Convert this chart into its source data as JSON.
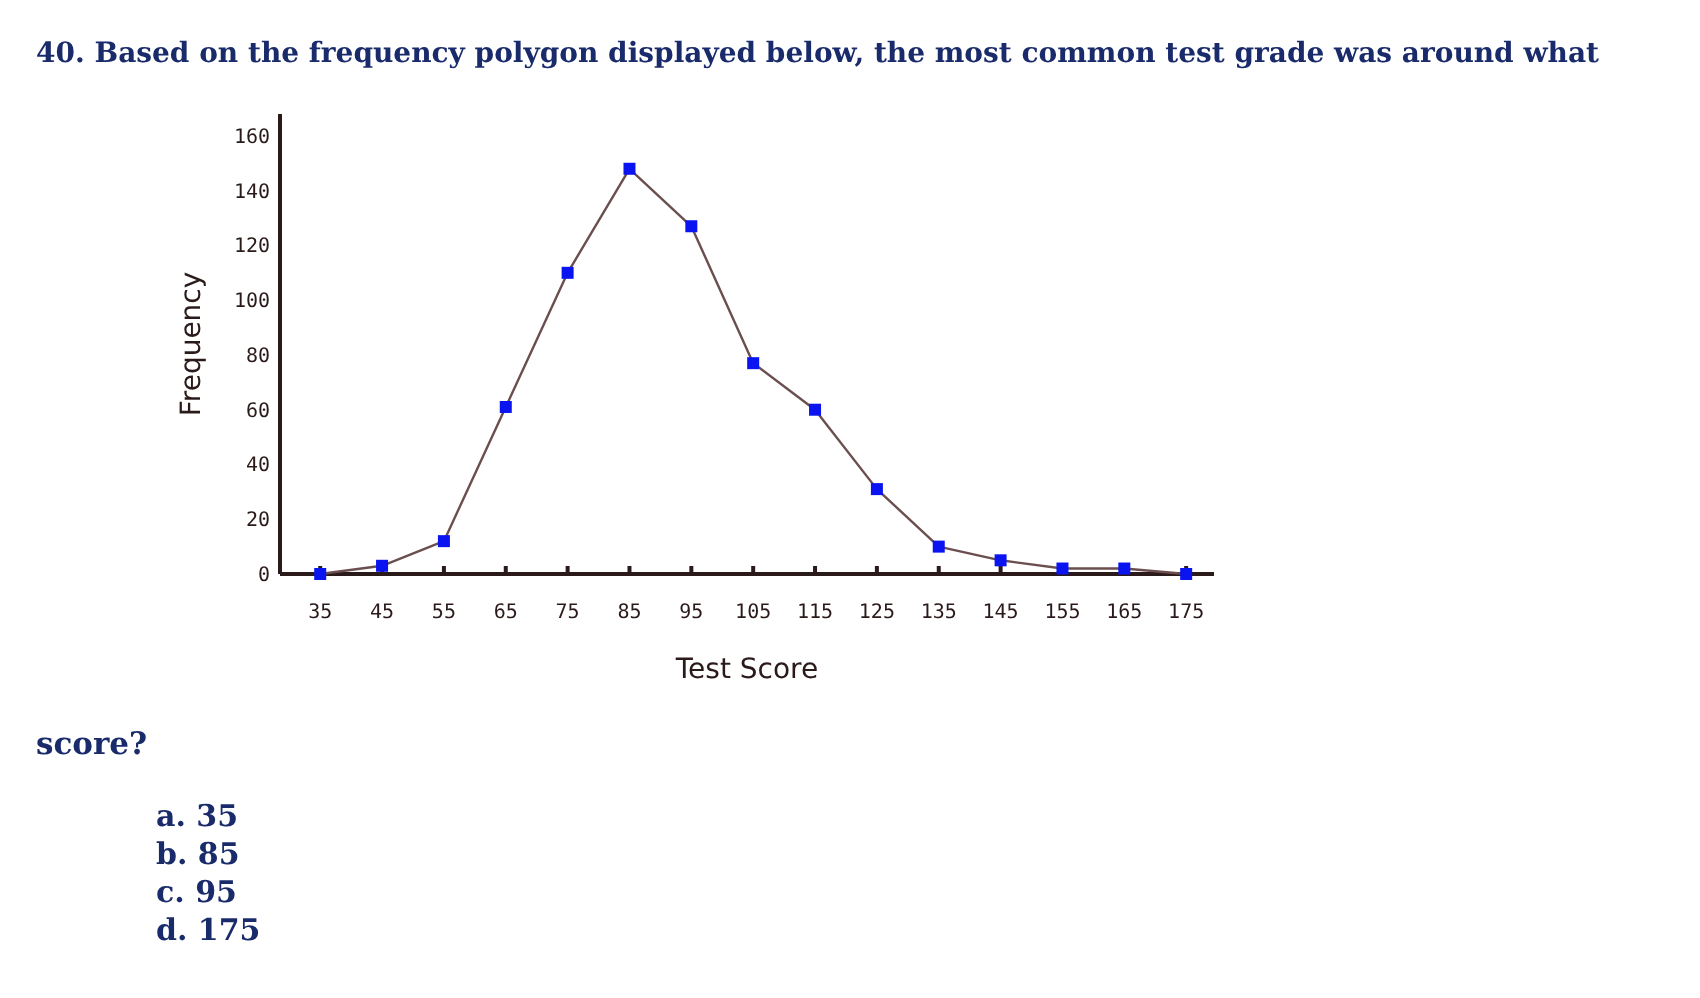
{
  "chart_data": {
    "type": "line",
    "title": "40. Based on the frequency polygon displayed below, the most common test grade was around what score?",
    "xlabel": "Test Score",
    "ylabel": "Frequency",
    "x": [
      35,
      45,
      55,
      65,
      75,
      85,
      95,
      105,
      115,
      125,
      135,
      145,
      155,
      165,
      175
    ],
    "series": [
      {
        "color": "#6b4f4f",
        "values": [
          0,
          3,
          12,
          61,
          110,
          148,
          127,
          77,
          60,
          31,
          10,
          5,
          2,
          2,
          0
        ]
      }
    ],
    "xlim": [
      28.5,
      179.5
    ],
    "xticks": [
      35,
      45,
      55,
      65,
      75,
      85,
      95,
      105,
      115,
      125,
      135,
      145,
      155,
      165,
      175
    ],
    "ylim": [
      0,
      168
    ],
    "yticks": [
      0,
      20,
      40,
      60,
      80,
      100,
      120,
      140,
      160
    ],
    "marker": "square",
    "grid": false,
    "annotations": [
      "a. 35",
      "b. 85",
      "c. 95",
      "d. 175"
    ]
  }
}
